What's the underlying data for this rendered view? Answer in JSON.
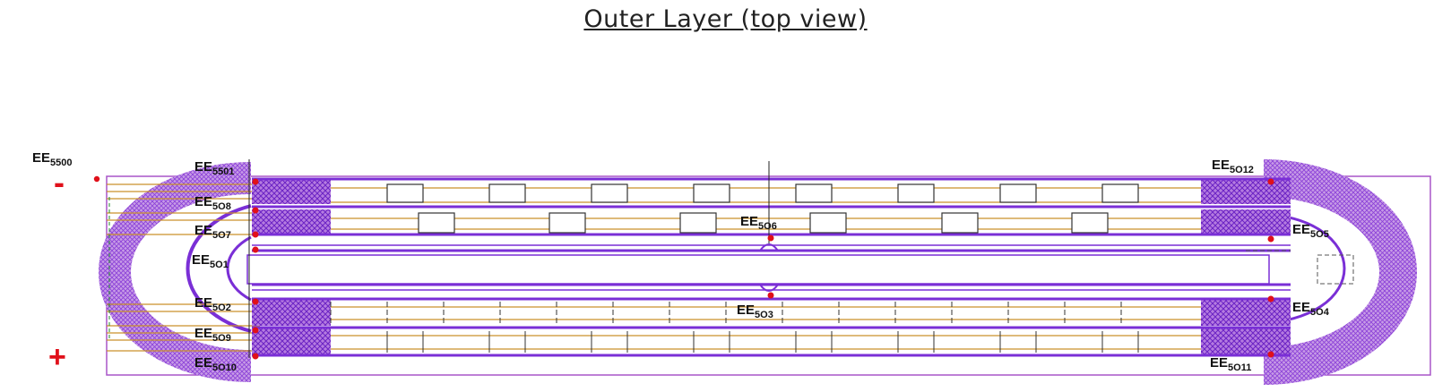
{
  "title": "Outer Layer (top view)",
  "polarity": {
    "minus": "-",
    "plus": "+"
  },
  "colors": {
    "trace": "#7a2fd6",
    "hatch": "#a35ad9",
    "copper": "#c9902a",
    "pad": "#e0101a",
    "outline": "#a855c8"
  },
  "labels": [
    {
      "id": "EE5500",
      "base": "EE",
      "sub": "5500"
    },
    {
      "id": "EE5501",
      "base": "EE",
      "sub": "5501"
    },
    {
      "id": "EE5O8",
      "base": "EE",
      "sub": "5O8"
    },
    {
      "id": "EE5O7",
      "base": "EE",
      "sub": "5O7"
    },
    {
      "id": "EE5O1",
      "base": "EE",
      "sub": "5O1"
    },
    {
      "id": "EE5O2",
      "base": "EE",
      "sub": "5O2"
    },
    {
      "id": "EE5O9",
      "base": "EE",
      "sub": "5O9"
    },
    {
      "id": "EE5O10",
      "base": "EE",
      "sub": "5O10"
    },
    {
      "id": "EE5O6",
      "base": "EE",
      "sub": "5O6"
    },
    {
      "id": "EE5O3",
      "base": "EE",
      "sub": "5O3"
    },
    {
      "id": "EE5O12",
      "base": "EE",
      "sub": "5O12"
    },
    {
      "id": "EE5O5",
      "base": "EE",
      "sub": "5O5"
    },
    {
      "id": "EE5O4",
      "base": "EE",
      "sub": "5O4"
    },
    {
      "id": "EE5O11",
      "base": "EE",
      "sub": "5O11"
    }
  ]
}
